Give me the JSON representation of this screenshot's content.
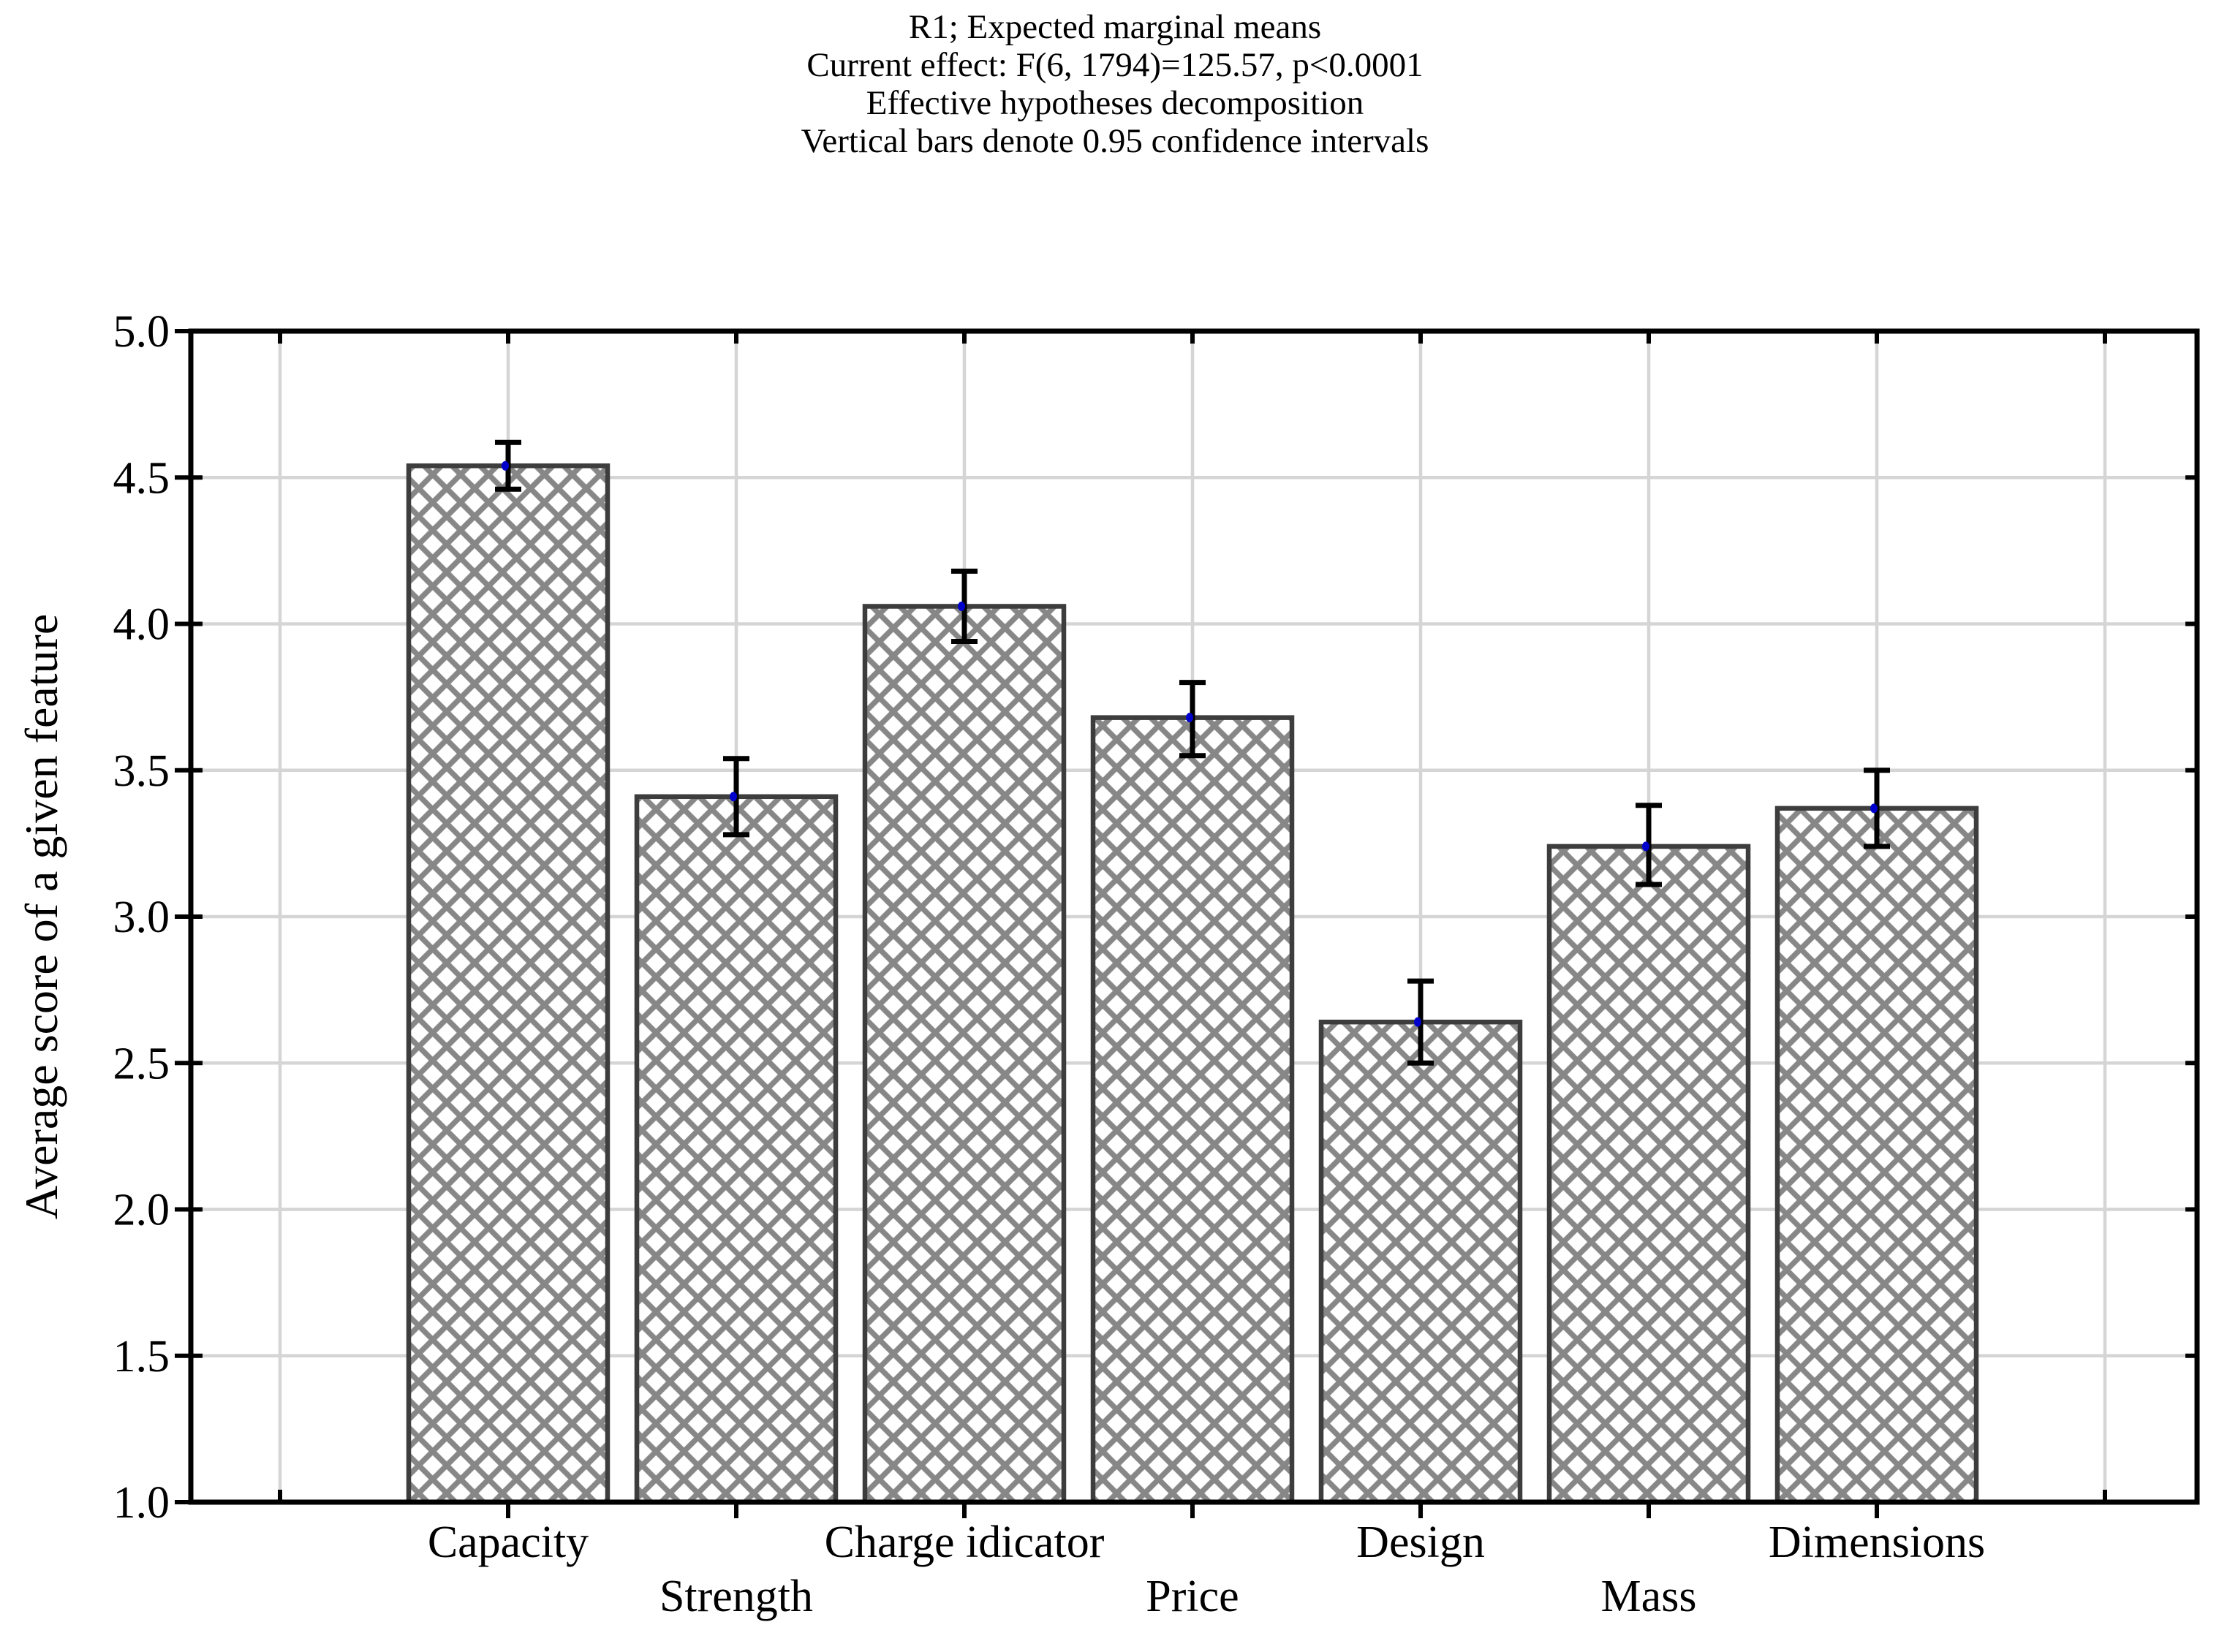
{
  "chart_data": {
    "type": "bar",
    "title_lines": [
      "R1; Expected marginal means",
      "Current effect: F(6, 1794)=125.57, p<0.0001",
      "Effective hypotheses decomposition",
      "Vertical bars denote 0.95 confidence intervals"
    ],
    "ylabel": "Average score of a given feature",
    "xlabel": "",
    "categories": [
      "Capacity",
      "Strength",
      "Charge idicator",
      "Price",
      "Design",
      "Mass",
      "Dimensions"
    ],
    "values": [
      4.54,
      3.41,
      4.06,
      3.68,
      2.64,
      3.24,
      3.37
    ],
    "ci_low": [
      4.46,
      3.28,
      3.94,
      3.55,
      2.5,
      3.11,
      3.24
    ],
    "ci_high": [
      4.62,
      3.54,
      4.18,
      3.8,
      2.78,
      3.38,
      3.5
    ],
    "ylim": [
      1.0,
      5.0
    ],
    "ytick_step": 0.5,
    "ytick_labels": [
      "5.0",
      "4.5",
      "4.0",
      "3.5",
      "3.0",
      "2.5",
      "2.0",
      "1.5",
      "1.0"
    ],
    "grid": true,
    "legend_position": "none",
    "bar_fill_style": "diagonal-crosshatch",
    "error_bar_meaning": "0.95 confidence interval"
  },
  "colors": {
    "background": "#ffffff",
    "bar_hatch": "#878787",
    "bar_border": "#3d3d3d",
    "error_bar": "#000000",
    "mean_marker": "#0000cc",
    "gridline": "#d5d5d5",
    "frame": "#000000",
    "text": "#000000"
  }
}
